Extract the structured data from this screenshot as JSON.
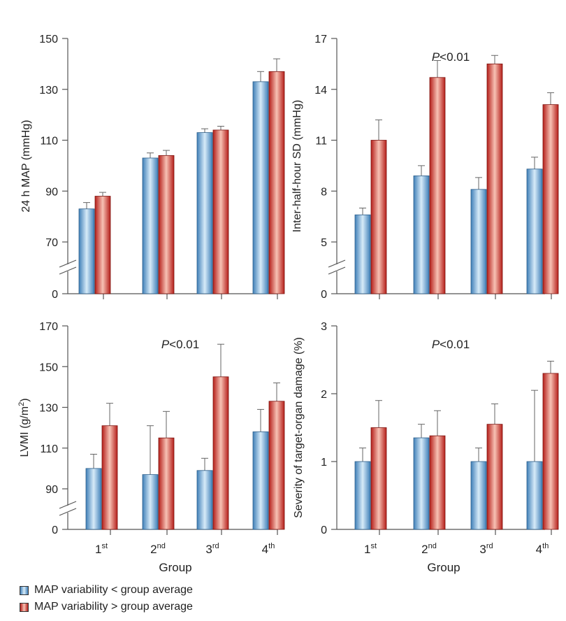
{
  "colors": {
    "blue_dark": "#3f7fb8",
    "blue_light": "#cfe5f6",
    "red_dark": "#b51f1a",
    "red_light": "#f5b3a6",
    "axis": "#555555",
    "error_bar": "#666666"
  },
  "legend": [
    {
      "label": "MAP variability < group average",
      "color_key": "blue"
    },
    {
      "label": "MAP variability > group average",
      "color_key": "red"
    }
  ],
  "chart_data": [
    {
      "type": "bar",
      "categories": [
        "1st",
        "2nd",
        "3rd",
        "4th"
      ],
      "ylabel": "24 h MAP (mmHg)",
      "annotation": "",
      "ylim": [
        70,
        150
      ],
      "yticks": [
        0,
        70,
        90,
        110,
        130,
        150
      ],
      "axis_break": true,
      "series": [
        {
          "name": "MAP variability < group average",
          "values": [
            83,
            103,
            113,
            133
          ],
          "errors": [
            2.5,
            2,
            1.5,
            4
          ]
        },
        {
          "name": "MAP variability > group average",
          "values": [
            88,
            104,
            114,
            137
          ],
          "errors": [
            1.5,
            2,
            1.5,
            5
          ]
        }
      ]
    },
    {
      "type": "bar",
      "categories": [
        "1st",
        "2nd",
        "3rd",
        "4th"
      ],
      "ylabel": "Inter-half-hour SD (mmHg)",
      "annotation": "P<0.01",
      "ylim": [
        5,
        17
      ],
      "yticks": [
        0,
        5,
        8,
        11,
        14,
        17
      ],
      "axis_break": true,
      "series": [
        {
          "name": "MAP variability < group average",
          "values": [
            6.6,
            8.9,
            8.1,
            9.3
          ],
          "errors": [
            0.4,
            0.6,
            0.7,
            0.7
          ]
        },
        {
          "name": "MAP variability > group average",
          "values": [
            11.0,
            14.7,
            15.5,
            13.1
          ],
          "errors": [
            1.2,
            1.0,
            0.5,
            0.7
          ]
        }
      ]
    },
    {
      "type": "bar",
      "categories": [
        "1st",
        "2nd",
        "3rd",
        "4th"
      ],
      "ylabel": "LVMI (g/m2)",
      "annotation": "P<0.01",
      "ylim": [
        90,
        170
      ],
      "yticks": [
        0,
        90,
        110,
        130,
        150,
        170
      ],
      "axis_break": true,
      "xlabel": "Group",
      "series": [
        {
          "name": "MAP variability < group average",
          "values": [
            100,
            97,
            99,
            118
          ],
          "errors": [
            7,
            24,
            6,
            11
          ]
        },
        {
          "name": "MAP variability > group average",
          "values": [
            121,
            115,
            145,
            133
          ],
          "errors": [
            11,
            13,
            16,
            9
          ]
        }
      ]
    },
    {
      "type": "bar",
      "categories": [
        "1st",
        "2nd",
        "3rd",
        "4th"
      ],
      "ylabel": "Severity of target-organ damage (%)",
      "annotation": "P<0.01",
      "ylim": [
        0,
        3
      ],
      "yticks": [
        0,
        1,
        2,
        3
      ],
      "axis_break": false,
      "xlabel": "Group",
      "series": [
        {
          "name": "MAP variability < group average",
          "values": [
            1.0,
            1.35,
            1.0,
            1.0
          ],
          "errors": [
            0.2,
            0.2,
            0.2,
            1.05
          ]
        },
        {
          "name": "MAP variability > group average",
          "values": [
            1.5,
            1.38,
            1.55,
            2.3
          ],
          "errors": [
            0.4,
            0.37,
            0.3,
            0.18
          ]
        }
      ]
    }
  ]
}
